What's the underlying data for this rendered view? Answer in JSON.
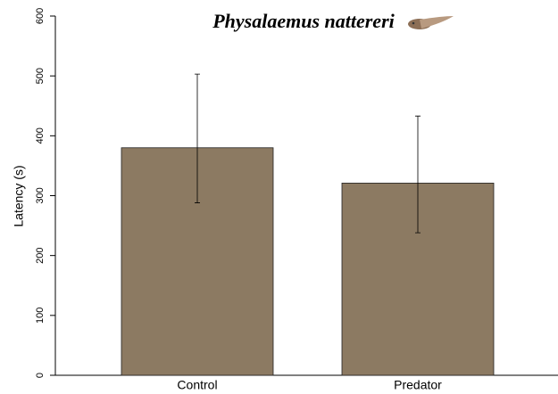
{
  "chart_data": {
    "type": "bar",
    "title": "Physalaemus nattereri",
    "y_label": "Latency (s)",
    "categories": [
      "Control",
      "Predator"
    ],
    "values": [
      380,
      321
    ],
    "error_lower": [
      288,
      238
    ],
    "error_upper": [
      503,
      433
    ],
    "color": "#8c7a62",
    "ylim": [
      0,
      600
    ],
    "yticks": [
      0,
      100,
      200,
      300,
      400,
      500,
      600
    ],
    "grid": false
  }
}
